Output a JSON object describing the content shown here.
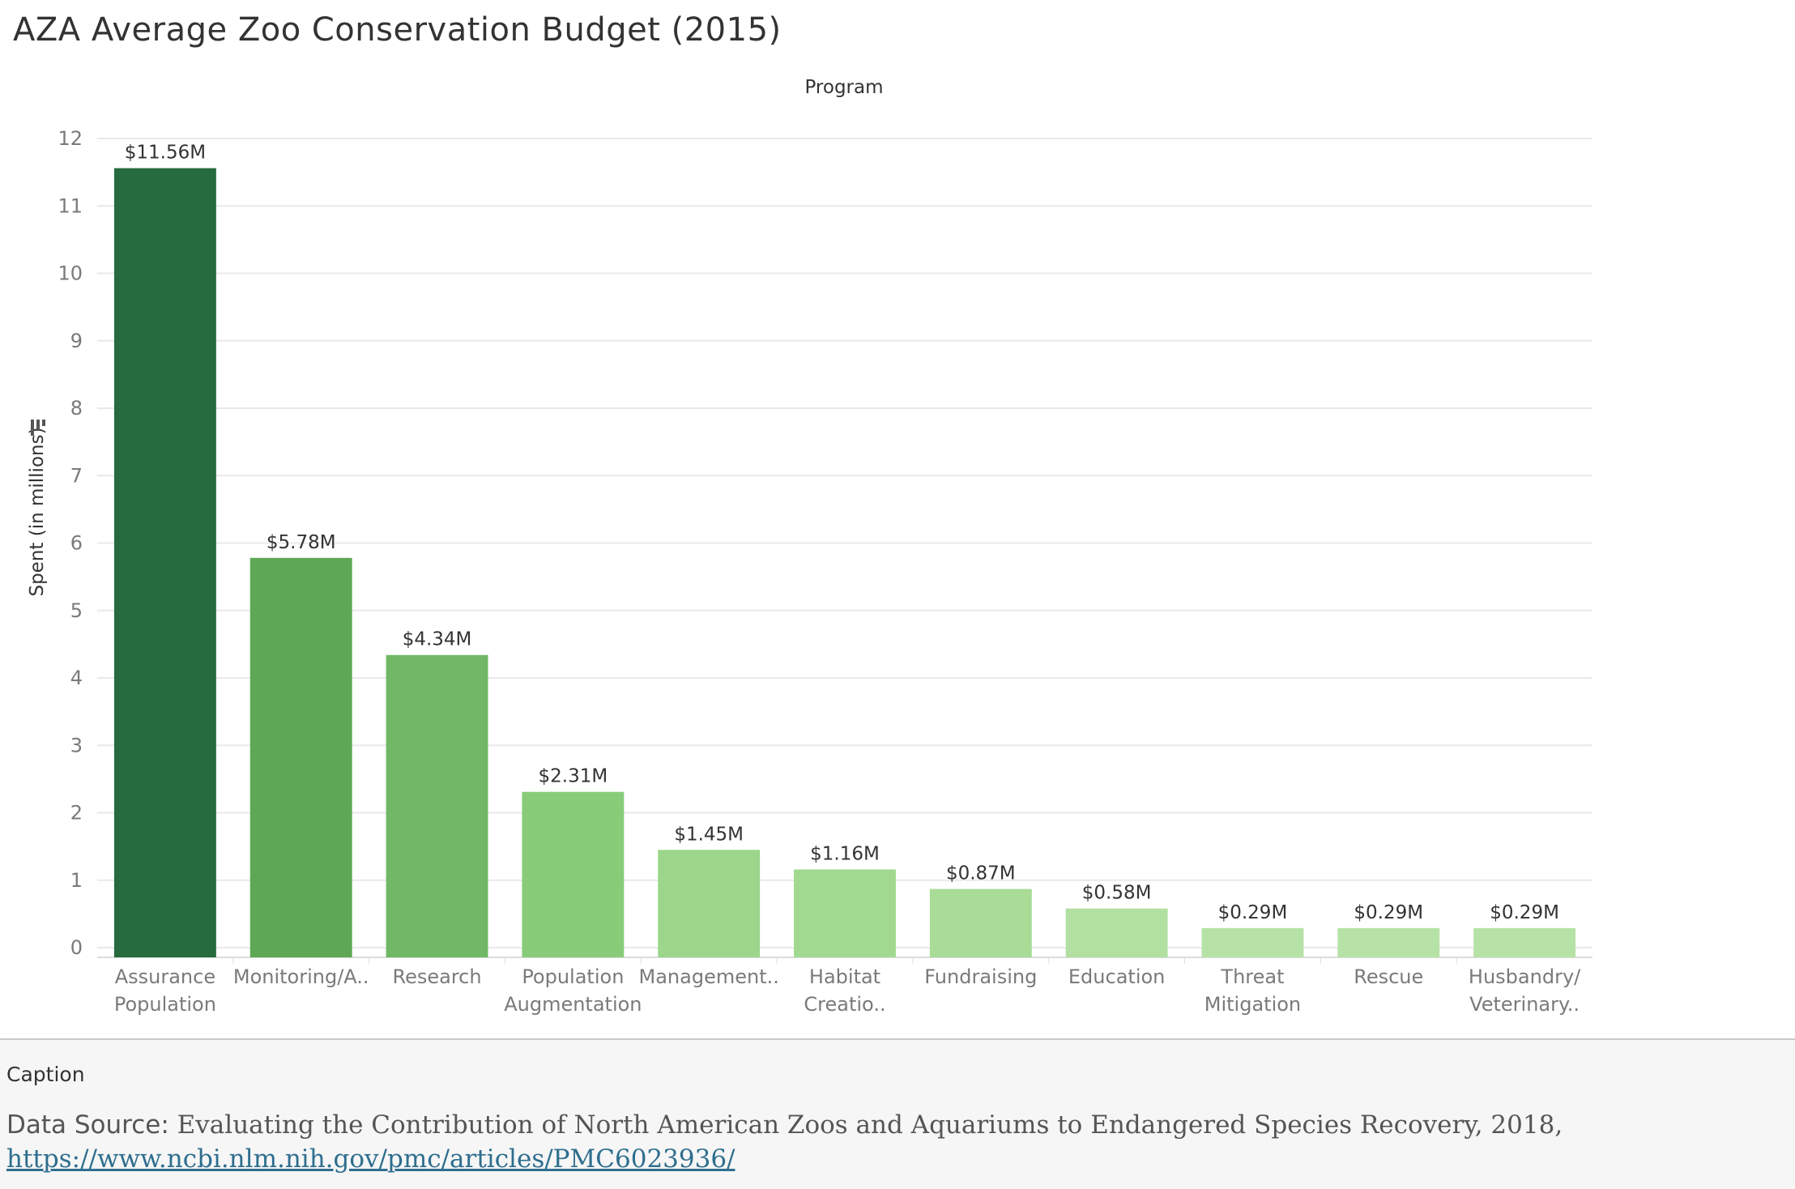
{
  "chart_data": {
    "type": "bar",
    "title": "AZA Average Zoo Conservation Budget (2015)",
    "column_header": "Program",
    "ylabel": "Spent (in millions)",
    "xlabel": "",
    "ylim": [
      0,
      12
    ],
    "yticks": [
      0,
      1,
      2,
      3,
      4,
      5,
      6,
      7,
      8,
      9,
      10,
      11,
      12
    ],
    "grid": true,
    "categories": [
      [
        "Assurance",
        "Population"
      ],
      [
        "Monitoring/A.."
      ],
      [
        "Research"
      ],
      [
        "Population",
        "Augmentation"
      ],
      [
        "Management.."
      ],
      [
        "Habitat",
        "Creatio.."
      ],
      [
        "Fundraising"
      ],
      [
        "Education"
      ],
      [
        "Threat",
        "Mitigation"
      ],
      [
        "Rescue"
      ],
      [
        "Husbandry/",
        "Veterinary.."
      ]
    ],
    "values": [
      11.56,
      5.78,
      4.34,
      2.31,
      1.45,
      1.16,
      0.87,
      0.58,
      0.29,
      0.29,
      0.29
    ],
    "labels": [
      "$11.56M",
      "$5.78M",
      "$4.34M",
      "$2.31M",
      "$1.45M",
      "$1.16M",
      "$0.87M",
      "$0.58M",
      "$0.29M",
      "$0.29M",
      "$0.29M"
    ],
    "colors": [
      "#256b3d",
      "#5ea755",
      "#70b865",
      "#88cb79",
      "#9bd68b",
      "#a2d991",
      "#a8dc97",
      "#b1e0a1",
      "#b6e2a6",
      "#b6e2a6",
      "#b6e2a6"
    ],
    "grid_color": "#e9e9e9",
    "tick_color": "#7a7a7a"
  },
  "caption": {
    "label": "Caption",
    "prefix": "Data Source: ",
    "text": "Evaluating the Contribution of North American Zoos and Aquariums to Endangered Species Recovery, 2018, ",
    "link": "https://www.ncbi.nlm.nih.gov/pmc/articles/PMC6023936/"
  }
}
